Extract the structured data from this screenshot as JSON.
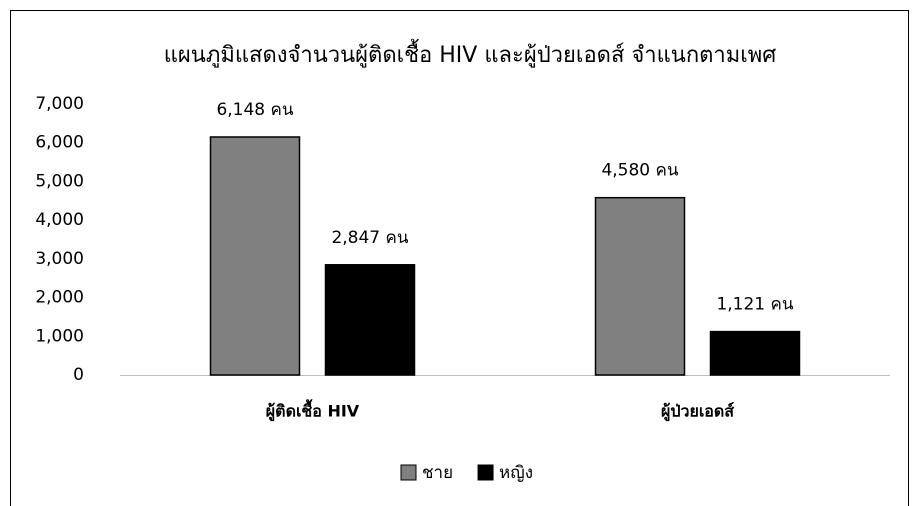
{
  "chart_data": {
    "type": "bar",
    "title": "แผนภูมิแสดงจำนวนผู้ติดเชื้อ HIV และผู้ป่วยเอดส์ จำแนกตามเพศ",
    "categories": [
      "ผู้ติดเชื้อ HIV",
      "ผู้ป่วยเอดส์"
    ],
    "series": [
      {
        "name": "ชาย",
        "color": "#808080",
        "values": [
          6148,
          4580
        ],
        "value_labels": [
          "6,148 คน",
          "4,580 คน"
        ]
      },
      {
        "name": "หญิง",
        "color": "#000000",
        "values": [
          2847,
          1121
        ],
        "value_labels": [
          "2,847 คน",
          "1,121 คน"
        ]
      }
    ],
    "ylim": [
      0,
      7000
    ],
    "yticks": [
      0,
      {
        "value": 1000,
        "label": "1,000"
      },
      {
        "value": 2000,
        "label": "2,000"
      },
      {
        "value": 3000,
        "label": "3,000"
      },
      {
        "value": 4000,
        "label": "4,000"
      },
      {
        "value": 5000,
        "label": "5,000"
      },
      {
        "value": 6000,
        "label": "6,000"
      },
      {
        "value": 7000,
        "label": "7,000"
      }
    ],
    "grid": false,
    "legend": "bottom"
  }
}
